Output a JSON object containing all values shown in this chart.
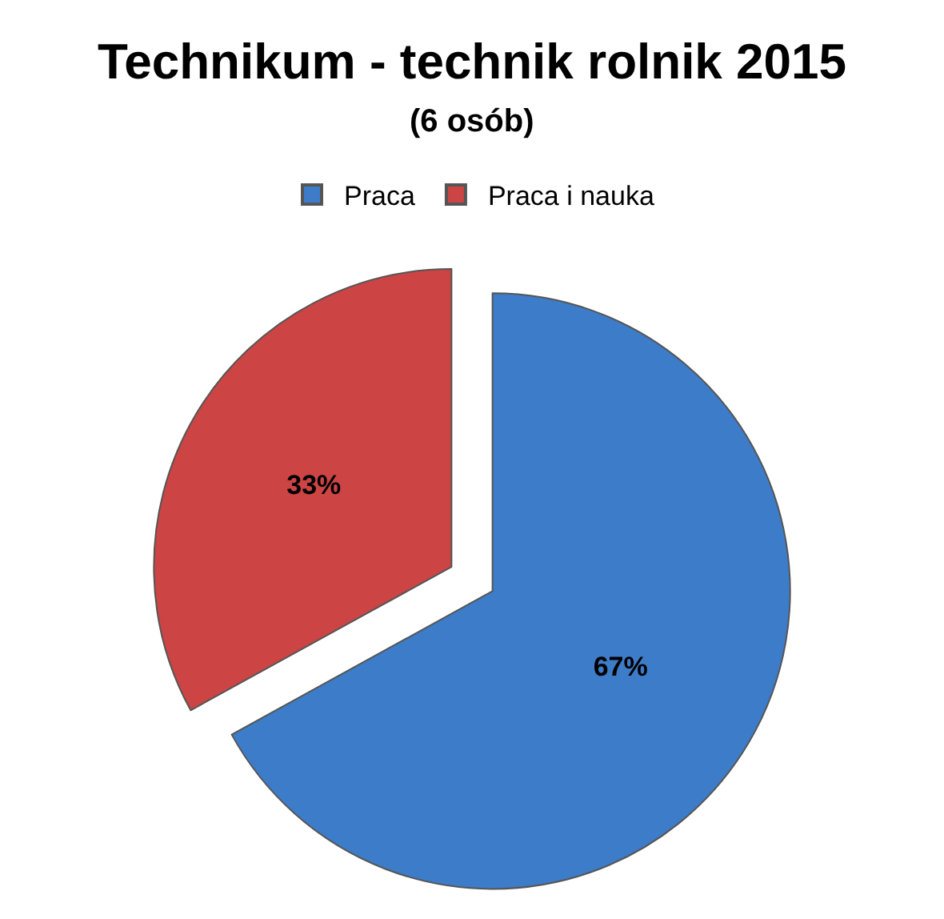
{
  "chart_data": {
    "type": "pie",
    "title": "Technikum - technik rolnik 2015",
    "subtitle": "(6 osób)",
    "categories": [
      "Praca",
      "Praca i nauka"
    ],
    "values": [
      67,
      33
    ],
    "colors": [
      "#3d7cc9",
      "#cc4444"
    ],
    "value_labels": [
      "67%",
      "33%"
    ],
    "legend": "top"
  }
}
